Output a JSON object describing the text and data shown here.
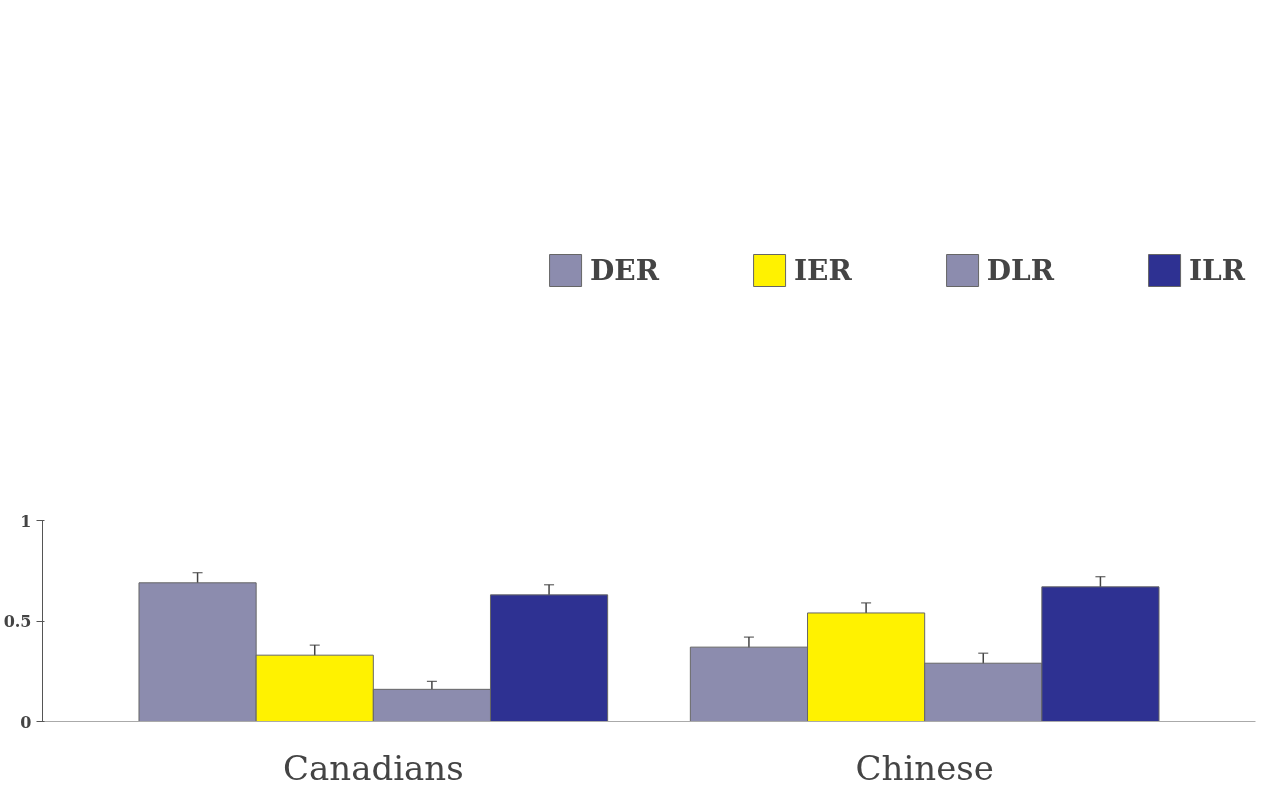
{
  "chart_data": {
    "type": "bar",
    "categories": [
      "Canadians",
      "Chinese"
    ],
    "series": [
      {
        "name": "DER",
        "color": "#8c8cae",
        "values": [
          0.69,
          0.37
        ],
        "errors": [
          0.05,
          0.05
        ]
      },
      {
        "name": "IER",
        "color": "#fff200",
        "values": [
          0.33,
          0.54
        ],
        "errors": [
          0.05,
          0.05
        ]
      },
      {
        "name": "DLR",
        "color": "#8c8cae",
        "values": [
          0.16,
          0.29
        ],
        "errors": [
          0.04,
          0.05
        ]
      },
      {
        "name": "ILR",
        "color": "#2e3192",
        "values": [
          0.63,
          0.67
        ],
        "errors": [
          0.05,
          0.05
        ]
      }
    ],
    "ylim": [
      0,
      1
    ],
    "yticks": [
      0,
      0.5,
      1
    ],
    "grid": false,
    "legend": "top"
  }
}
